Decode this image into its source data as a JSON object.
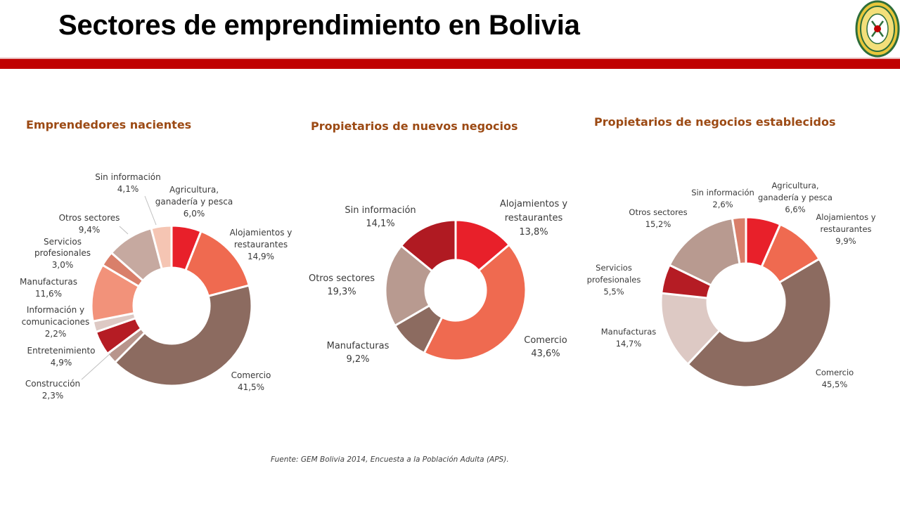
{
  "title": "Sectores de emprendimiento en Bolivia",
  "source": "Fuente: GEM Bolivia 2014, Encuesta  a la Población Adulta (APS).",
  "logo": {
    "icon": "university-seal-icon",
    "colors": [
      "#2e6e3a",
      "#e8c63a"
    ]
  },
  "chart_data": [
    {
      "type": "pie",
      "title": "Emprendedores nacientes",
      "donut": true,
      "slices": [
        {
          "label": "Agricultura, ganadería y pesca",
          "value_label": "6,0%",
          "value": 6.0,
          "color": "#e8202a"
        },
        {
          "label": "Alojamientos y restaurantes",
          "value_label": "14,9%",
          "value": 14.9,
          "color": "#ef6a50"
        },
        {
          "label": "Comercio",
          "value_label": "41,5%",
          "value": 41.5,
          "color": "#8c6b60"
        },
        {
          "label": "Construcción",
          "value_label": "2,3%",
          "value": 2.3,
          "color": "#b8958c"
        },
        {
          "label": "Entretenimiento",
          "value_label": "4,9%",
          "value": 4.9,
          "color": "#b51c24"
        },
        {
          "label": "Información y comunicaciones",
          "value_label": "2,2%",
          "value": 2.2,
          "color": "#ddc9c4"
        },
        {
          "label": "Manufacturas",
          "value_label": "11,6%",
          "value": 11.6,
          "color": "#f2927a"
        },
        {
          "label": "Servicios profesionales",
          "value_label": "3,0%",
          "value": 3.0,
          "color": "#d97f6a"
        },
        {
          "label": "Otros sectores",
          "value_label": "9,4%",
          "value": 9.4,
          "color": "#c6a9a0"
        },
        {
          "label": "Sin información",
          "value_label": "4,1%",
          "value": 4.1,
          "color": "#f5c5b3"
        }
      ]
    },
    {
      "type": "pie",
      "title": "Propietarios de nuevos negocios",
      "donut": true,
      "slices": [
        {
          "label": "Alojamientos y restaurantes",
          "value_label": "13,8%",
          "value": 13.8,
          "color": "#e8202a"
        },
        {
          "label": "Comercio",
          "value_label": "43,6%",
          "value": 43.6,
          "color": "#ef6a50"
        },
        {
          "label": "Manufacturas",
          "value_label": "9,2%",
          "value": 9.2,
          "color": "#8c6b60"
        },
        {
          "label": "Otros sectores",
          "value_label": "19,3%",
          "value": 19.3,
          "color": "#b89a90"
        },
        {
          "label": "Sin información",
          "value_label": "14,1%",
          "value": 14.1,
          "color": "#b01a22"
        }
      ]
    },
    {
      "type": "pie",
      "title": "Propietarios de negocios establecidos",
      "donut": true,
      "slices": [
        {
          "label": "Agricultura, ganadería y pesca",
          "value_label": "6,6%",
          "value": 6.6,
          "color": "#e8202a"
        },
        {
          "label": "Alojamientos y restaurantes",
          "value_label": "9,9%",
          "value": 9.9,
          "color": "#ef6a50"
        },
        {
          "label": "Comercio",
          "value_label": "45,5%",
          "value": 45.5,
          "color": "#8c6b60"
        },
        {
          "label": "Manufacturas",
          "value_label": "14,7%",
          "value": 14.7,
          "color": "#ddc9c4"
        },
        {
          "label": "Servicios profesionales",
          "value_label": "5,5%",
          "value": 5.5,
          "color": "#b51c24"
        },
        {
          "label": "Otros sectores",
          "value_label": "15,2%",
          "value": 15.2,
          "color": "#b89a90"
        },
        {
          "label": "Sin información",
          "value_label": "2,6%",
          "value": 2.6,
          "color": "#d97f6a"
        }
      ]
    }
  ]
}
